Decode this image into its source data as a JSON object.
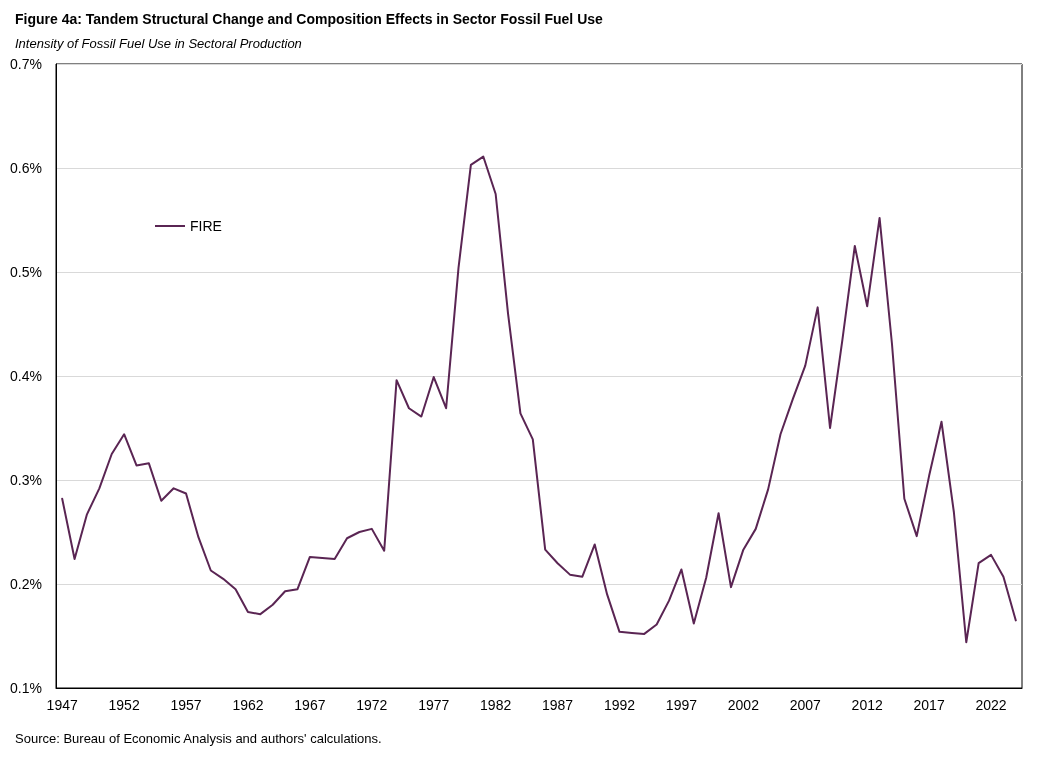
{
  "chart_data": {
    "type": "line",
    "title": "Figure 4a: Tandem Structural Change and Composition Effects in Sector Fossil Fuel Use",
    "subtitle": "Intensity of Fossil Fuel Use in Sectoral Production",
    "categories": [
      "1947",
      null,
      null,
      null,
      null,
      "1952",
      null,
      null,
      null,
      null,
      "1957",
      null,
      null,
      null,
      null,
      "1962",
      null,
      null,
      null,
      null,
      "1967",
      null,
      null,
      null,
      null,
      "1972",
      null,
      null,
      null,
      null,
      "1977",
      null,
      null,
      null,
      null,
      "1982",
      null,
      null,
      null,
      null,
      "1987",
      null,
      null,
      null,
      null,
      "1992",
      null,
      null,
      null,
      null,
      "1997",
      null,
      null,
      null,
      null,
      "2002",
      null,
      null,
      null,
      null,
      "2007",
      null,
      null,
      null,
      null,
      "2012",
      null,
      null,
      null,
      null,
      "2017",
      null,
      null,
      null,
      null,
      "2022",
      null,
      null
    ],
    "series": [
      {
        "name": "FIRE",
        "color": "#5a2553",
        "values": [
          0.282,
          0.224,
          0.267,
          0.292,
          0.325,
          0.344,
          0.314,
          0.316,
          0.28,
          0.292,
          0.287,
          0.245,
          0.213,
          0.205,
          0.195,
          0.173,
          0.171,
          0.18,
          0.193,
          0.195,
          0.226,
          0.225,
          0.224,
          0.244,
          0.25,
          0.253,
          0.232,
          0.396,
          0.369,
          0.361,
          0.399,
          0.369,
          0.504,
          0.603,
          0.611,
          0.575,
          0.46,
          0.364,
          0.339,
          0.233,
          0.22,
          0.209,
          0.207,
          0.238,
          0.19,
          0.154,
          0.153,
          0.152,
          0.161,
          0.184,
          0.214,
          0.162,
          0.206,
          0.268,
          0.197,
          0.233,
          0.253,
          0.291,
          0.344,
          0.378,
          0.41,
          0.466,
          0.35,
          0.435,
          0.525,
          0.467,
          0.552,
          0.431,
          0.282,
          0.246,
          0.304,
          0.356,
          0.269,
          0.144,
          0.22,
          0.228,
          0.207,
          0.165
        ]
      }
    ],
    "ylim": [
      0.1,
      0.7
    ],
    "yticks": [
      {
        "value": 0.1,
        "label": "0.1%"
      },
      {
        "value": 0.2,
        "label": "0.2%"
      },
      {
        "value": 0.3,
        "label": "0.3%"
      },
      {
        "value": 0.4,
        "label": "0.4%"
      },
      {
        "value": 0.5,
        "label": "0.5%"
      },
      {
        "value": 0.6,
        "label": "0.6%"
      },
      {
        "value": 0.7,
        "label": "0.7%"
      }
    ],
    "grid": "y",
    "legend": "top left",
    "annotations": [
      "Source: Bureau of Economic Analysis and authors' calculations."
    ]
  }
}
